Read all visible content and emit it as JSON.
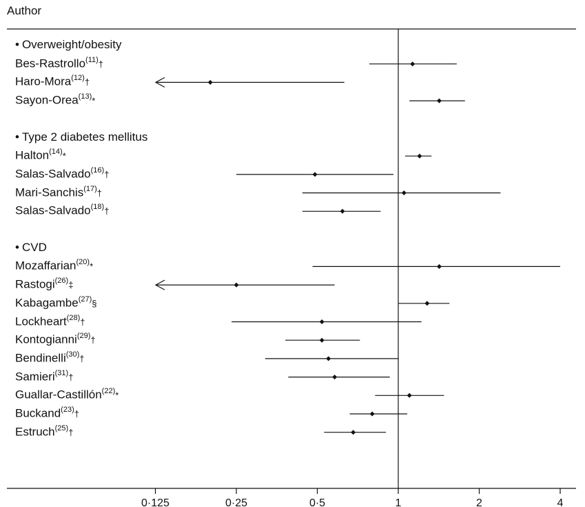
{
  "header": {
    "author_label": "Author"
  },
  "chart_data": {
    "type": "forest",
    "x_scale": "log2",
    "xlim": [
      0.09,
      4.6
    ],
    "reference_line": 1,
    "x_ticks": [
      {
        "value": 0.125,
        "label": "0·125"
      },
      {
        "value": 0.25,
        "label": "0·25"
      },
      {
        "value": 0.5,
        "label": "0·5"
      },
      {
        "value": 1,
        "label": "1"
      },
      {
        "value": 2,
        "label": "2"
      },
      {
        "value": 4,
        "label": "4"
      }
    ],
    "groups": [
      {
        "bullet": "•",
        "name": "Overweight/obesity",
        "studies": [
          {
            "author": "Bes-Rastrollo",
            "ref": "(11)",
            "mark": "†",
            "estimate": 1.13,
            "lower": 0.78,
            "upper": 1.65,
            "lower_truncated": false
          },
          {
            "author": "Haro-Mora",
            "ref": "(12)",
            "mark": "†",
            "estimate": 0.2,
            "lower": 0.12,
            "upper": 0.63,
            "lower_truncated": true
          },
          {
            "author": "Sayon-Orea",
            "ref": "(13)",
            "mark": "*",
            "estimate": 1.42,
            "lower": 1.1,
            "upper": 1.77,
            "lower_truncated": false
          }
        ]
      },
      {
        "bullet": "•",
        "name": "Type 2 diabetes mellitus",
        "studies": [
          {
            "author": "Halton",
            "ref": "(14)",
            "mark": "*",
            "estimate": 1.2,
            "lower": 1.06,
            "upper": 1.33,
            "lower_truncated": false
          },
          {
            "author": "Salas-Salvado",
            "ref": "(16)",
            "mark": "†",
            "estimate": 0.49,
            "lower": 0.25,
            "upper": 0.96,
            "lower_truncated": false
          },
          {
            "author": "Mari-Sanchis",
            "ref": "(17)",
            "mark": "†",
            "estimate": 1.05,
            "lower": 0.44,
            "upper": 2.4,
            "lower_truncated": false
          },
          {
            "author": "Salas-Salvado",
            "ref": "(18)",
            "mark": "†",
            "estimate": 0.62,
            "lower": 0.44,
            "upper": 0.86,
            "lower_truncated": false
          }
        ]
      },
      {
        "bullet": "•",
        "name": "CVD",
        "studies": [
          {
            "author": "Mozaffarian",
            "ref": "(20)",
            "mark": "*",
            "estimate": 1.42,
            "lower": 0.48,
            "upper": 4.0,
            "lower_truncated": false
          },
          {
            "author": "Rastogi",
            "ref": "(26)",
            "mark": "‡",
            "estimate": 0.25,
            "lower": 0.12,
            "upper": 0.58,
            "lower_truncated": true
          },
          {
            "author": "Kabagambe",
            "ref": "(27)",
            "mark": "§",
            "estimate": 1.28,
            "lower": 1.0,
            "upper": 1.55,
            "lower_truncated": false
          },
          {
            "author": "Lockheart",
            "ref": "(28)",
            "mark": "†",
            "estimate": 0.52,
            "lower": 0.24,
            "upper": 1.22,
            "lower_truncated": false
          },
          {
            "author": "Kontogianni",
            "ref": "(29)",
            "mark": "†",
            "estimate": 0.52,
            "lower": 0.38,
            "upper": 0.72,
            "lower_truncated": false
          },
          {
            "author": "Bendinelli",
            "ref": "(30)",
            "mark": "†",
            "estimate": 0.55,
            "lower": 0.32,
            "upper": 1.0,
            "lower_truncated": false
          },
          {
            "author": "Samieri",
            "ref": "(31)",
            "mark": "†",
            "estimate": 0.58,
            "lower": 0.39,
            "upper": 0.93,
            "lower_truncated": false
          },
          {
            "author": "Guallar-Castillón",
            "ref": "(22)",
            "mark": "*",
            "estimate": 1.1,
            "lower": 0.82,
            "upper": 1.48,
            "lower_truncated": false
          },
          {
            "author": "Buckand",
            "ref": "(23)",
            "mark": "†",
            "estimate": 0.8,
            "lower": 0.66,
            "upper": 1.08,
            "lower_truncated": false
          },
          {
            "author": "Estruch",
            "ref": "(25)",
            "mark": "†",
            "estimate": 0.68,
            "lower": 0.53,
            "upper": 0.9,
            "lower_truncated": false
          }
        ]
      }
    ]
  }
}
